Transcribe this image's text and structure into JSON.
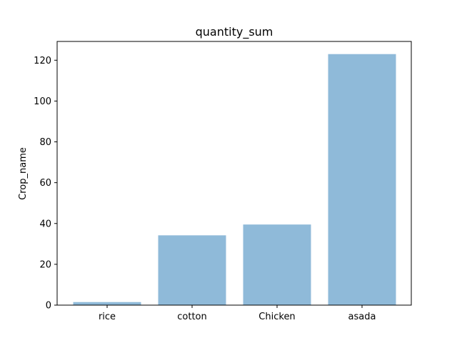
{
  "chart_data": {
    "type": "bar",
    "title": "quantity_sum",
    "xlabel": "",
    "ylabel": "Crop_name",
    "categories": [
      "rice",
      "cotton",
      "Chicken",
      "asada"
    ],
    "values": [
      1.5,
      34.2,
      39.5,
      123
    ],
    "ylim": [
      0,
      129.2
    ],
    "yticks": [
      0,
      20,
      40,
      60,
      80,
      100,
      120
    ],
    "grid": false,
    "bar_color": "#8fbad9"
  }
}
